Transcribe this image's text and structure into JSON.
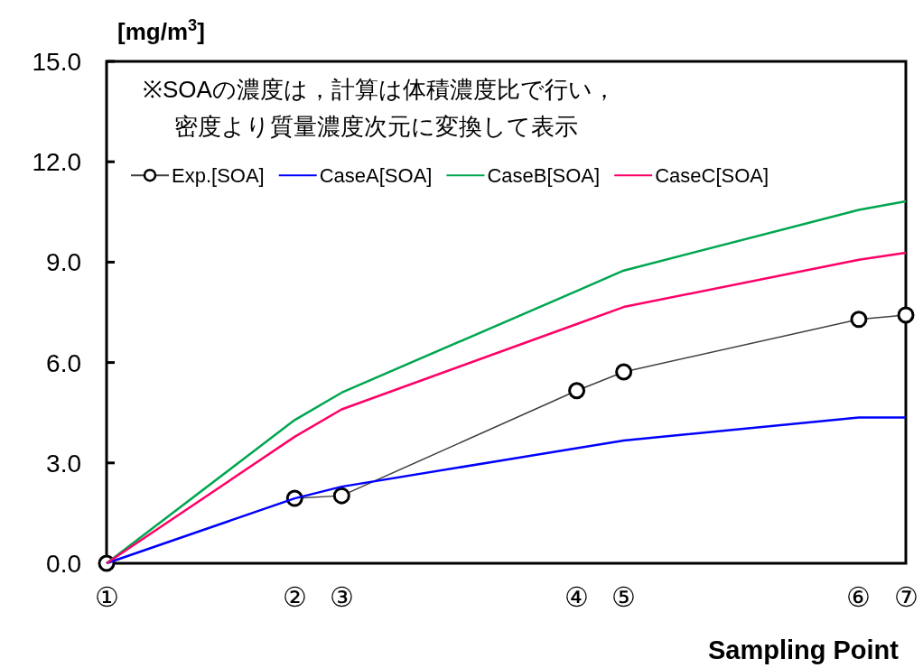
{
  "chart_data": {
    "type": "line",
    "ylabel": "[mg/m$^{3}$]",
    "xlabel": "Sampling Point",
    "annotations": [
      "※SOAの濃度は，計算は体積濃度比で行い，",
      "密度より質量濃度次元に変換して表示"
    ],
    "categories": [
      "①",
      null,
      null,
      null,
      "②",
      "③",
      null,
      null,
      null,
      null,
      "④",
      "⑤",
      null,
      null,
      null,
      null,
      "⑥",
      "⑦"
    ],
    "ylim": [
      0,
      15
    ],
    "yticks": [
      {
        "value": 0,
        "label": "0.0"
      },
      {
        "value": 3,
        "label": "3.0"
      },
      {
        "value": 6,
        "label": "6.0"
      },
      {
        "value": 9,
        "label": "9.0"
      },
      {
        "value": 12,
        "label": "12.0"
      },
      {
        "value": 15,
        "label": "15.0"
      }
    ],
    "legend": "top",
    "series": [
      {
        "name": "Exp.[SOA]",
        "color": "#404040",
        "marker": "circle",
        "values": [
          0,
          null,
          null,
          null,
          1.94,
          2.02,
          null,
          null,
          null,
          null,
          5.16,
          5.72,
          null,
          null,
          null,
          null,
          7.29,
          7.42
        ]
      },
      {
        "name": "CaseA[SOA]",
        "color": "#0000ff",
        "marker": "none",
        "values": [
          0,
          null,
          null,
          null,
          1.94,
          2.29,
          null,
          null,
          null,
          null,
          3.44,
          3.67,
          null,
          null,
          null,
          null,
          4.36,
          4.36
        ]
      },
      {
        "name": "CaseB[SOA]",
        "color": "#00a650",
        "marker": "none",
        "values": [
          0,
          null,
          null,
          null,
          4.28,
          5.1,
          null,
          null,
          null,
          null,
          8.14,
          8.75,
          null,
          null,
          null,
          null,
          10.56,
          10.82
        ]
      },
      {
        "name": "CaseC[SOA]",
        "color": "#ff0066",
        "marker": "none",
        "values": [
          0,
          null,
          null,
          null,
          3.78,
          4.6,
          null,
          null,
          null,
          null,
          7.15,
          7.66,
          null,
          null,
          null,
          null,
          9.07,
          9.28
        ]
      }
    ]
  }
}
